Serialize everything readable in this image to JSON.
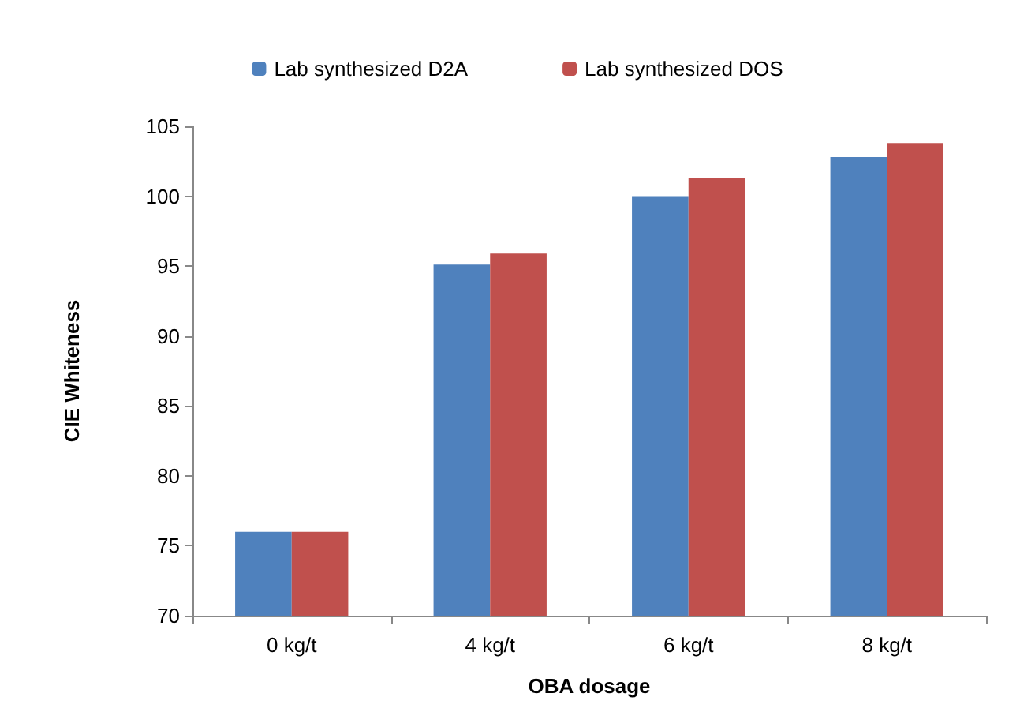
{
  "chart_data": {
    "type": "bar",
    "xlabel": "OBA dosage",
    "ylabel": "CIE Whiteness",
    "categories": [
      "0 kg/t",
      "4 kg/t",
      "6 kg/t",
      "8 kg/t"
    ],
    "series": [
      {
        "name": "Lab synthesized D2A",
        "color": "#4f81bd",
        "values": [
          76,
          95.1,
          100,
          102.8
        ]
      },
      {
        "name": "Lab synthesized DOS",
        "color": "#c0504d",
        "values": [
          76,
          95.9,
          101.3,
          103.8
        ]
      }
    ],
    "ylim": [
      70,
      105
    ],
    "yticks": [
      70,
      75,
      80,
      85,
      90,
      95,
      100,
      105
    ],
    "grid": false,
    "legend": "top"
  }
}
